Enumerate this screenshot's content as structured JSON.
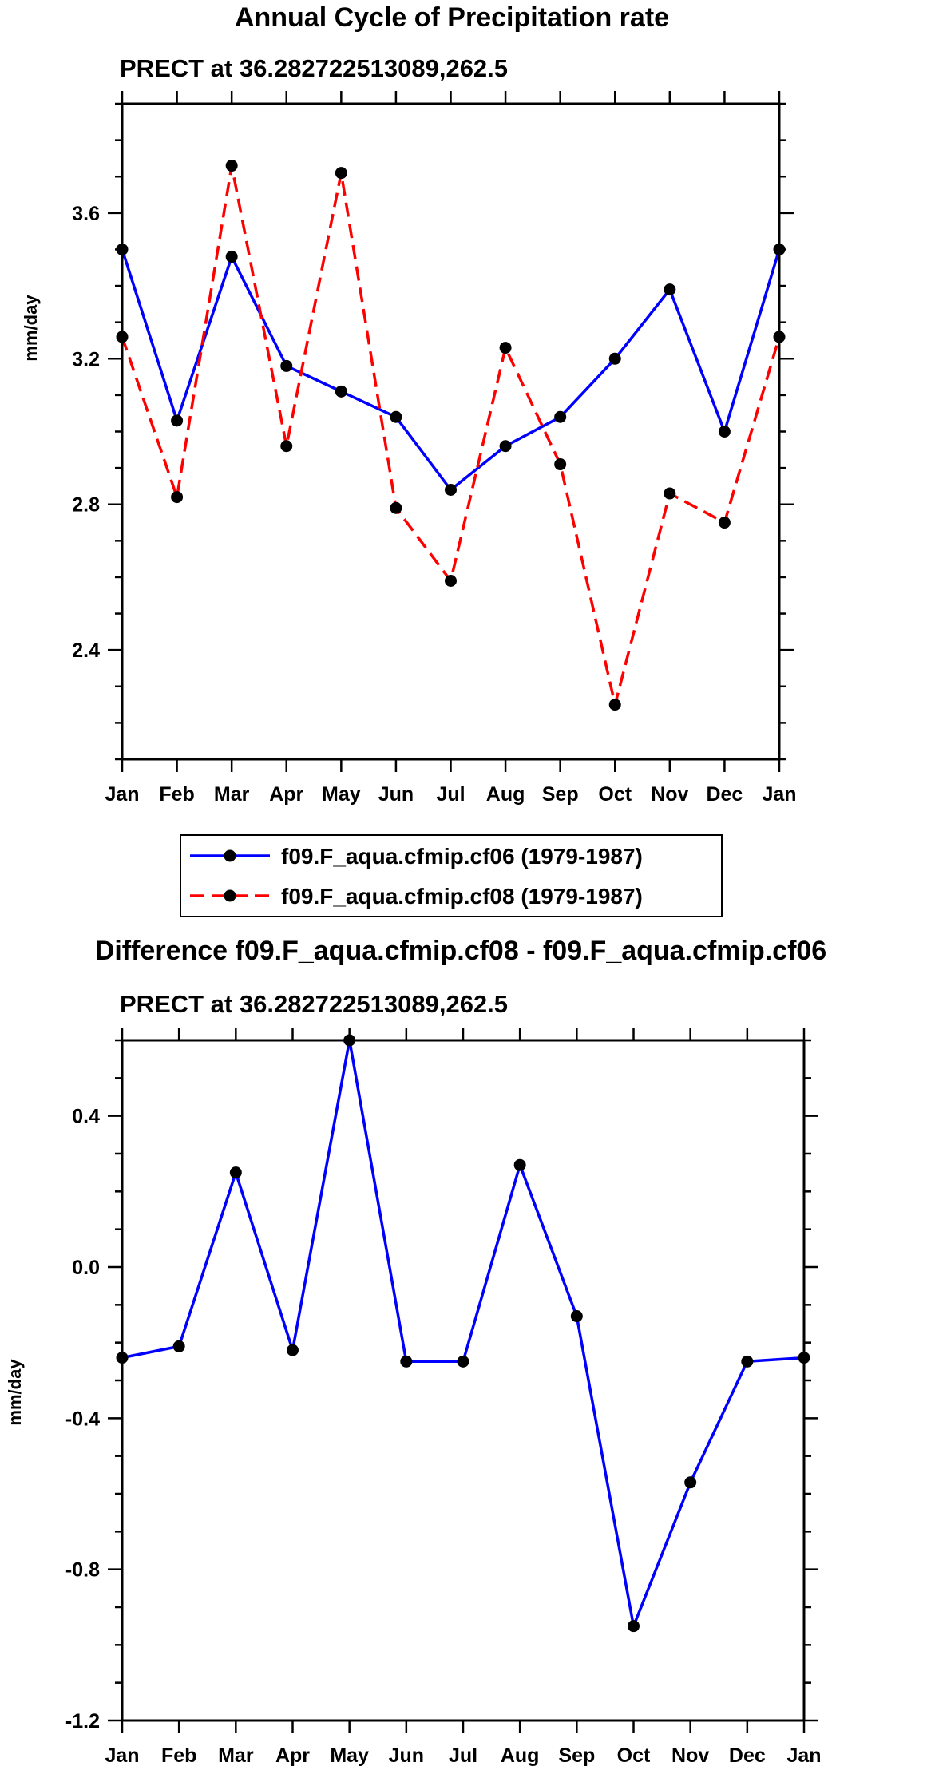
{
  "chart_data": [
    {
      "type": "line",
      "title": "Annual Cycle of Precipitation rate",
      "subtitle": "PRECT at 36.282722513089,262.5",
      "xlabel": "",
      "ylabel": "mm/day",
      "categories": [
        "Jan",
        "Feb",
        "Mar",
        "Apr",
        "May",
        "Jun",
        "Jul",
        "Aug",
        "Sep",
        "Oct",
        "Nov",
        "Dec",
        "Jan"
      ],
      "ylim": [
        2.1,
        3.9
      ],
      "yticks": [
        "2.4",
        "2.8",
        "3.2",
        "3.6"
      ],
      "grid": false,
      "series": [
        {
          "name": "f09.F_aqua.cfmip.cf06 (1979-1987)",
          "color": "#0000ff",
          "style": "solid",
          "values": [
            3.5,
            3.03,
            3.48,
            3.18,
            3.11,
            3.04,
            2.84,
            2.96,
            3.04,
            3.2,
            3.39,
            3.0,
            3.5
          ]
        },
        {
          "name": "f09.F_aqua.cfmip.cf08 (1979-1987)",
          "color": "#ff0000",
          "style": "dashed",
          "values": [
            3.26,
            2.82,
            3.73,
            2.96,
            3.71,
            2.79,
            2.59,
            3.23,
            2.91,
            2.25,
            2.83,
            2.75,
            3.26
          ]
        }
      ]
    },
    {
      "type": "line",
      "title": "Difference f09.F_aqua.cfmip.cf08 - f09.F_aqua.cfmip.cf06",
      "subtitle": "PRECT at 36.282722513089,262.5",
      "xlabel": "",
      "ylabel": "mm/day",
      "categories": [
        "Jan",
        "Feb",
        "Mar",
        "Apr",
        "May",
        "Jun",
        "Jul",
        "Aug",
        "Sep",
        "Oct",
        "Nov",
        "Dec",
        "Jan"
      ],
      "ylim": [
        -1.2,
        0.6
      ],
      "yticks": [
        "-1.2",
        "-0.8",
        "-0.4",
        "0.0",
        "0.4"
      ],
      "grid": false,
      "series": [
        {
          "name": "cf08 - cf06",
          "color": "#0000ff",
          "style": "solid",
          "values": [
            -0.24,
            -0.21,
            0.25,
            -0.22,
            0.6,
            -0.25,
            -0.25,
            0.27,
            -0.13,
            -0.95,
            -0.57,
            -0.25,
            -0.24
          ]
        }
      ]
    }
  ]
}
